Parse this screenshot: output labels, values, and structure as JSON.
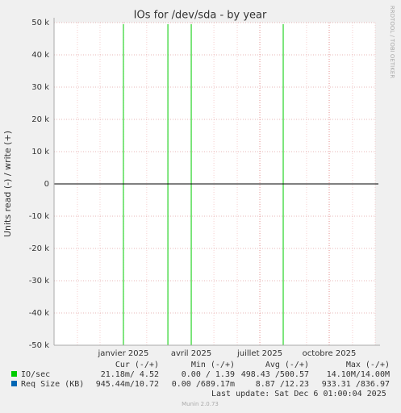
{
  "chart_data": {
    "type": "line",
    "title": "IOs for /dev/sda - by year",
    "y_label": "Units read (-) / write (+)",
    "side_label": "RRDTOOL / TOBI OETIKER",
    "xlim": [
      "2024-10",
      "2025-12"
    ],
    "xticks": [
      {
        "value": "2025-01",
        "label": "janvier 2025"
      },
      {
        "value": "2025-04",
        "label": "avril 2025"
      },
      {
        "value": "2025-07",
        "label": "juillet 2025"
      },
      {
        "value": "2025-10",
        "label": "octobre 2025"
      }
    ],
    "ylim": [
      -50000,
      50000
    ],
    "yticks": [
      {
        "value": -50000,
        "label": "-50 k"
      },
      {
        "value": -40000,
        "label": "-40 k"
      },
      {
        "value": -30000,
        "label": "-30 k"
      },
      {
        "value": -20000,
        "label": "-20 k"
      },
      {
        "value": -10000,
        "label": "-10 k"
      },
      0,
      {
        "value": 10000,
        "label": "10 k"
      },
      {
        "value": 20000,
        "label": "20 k"
      },
      {
        "value": 30000,
        "label": "30 k"
      },
      {
        "value": 40000,
        "label": "40 k"
      },
      {
        "value": 50000,
        "label": "50 k"
      }
    ],
    "grid": true,
    "series": [
      {
        "name": "IO/sec",
        "color": "#00cc00",
        "x": [
          "2024-10",
          "2025-01",
          "2025-01",
          "2025-01",
          "2025-01",
          "2025-03",
          "2025-03",
          "2025-03",
          "2025-03",
          "2025-04",
          "2025-04",
          "2025-04",
          "2025-04",
          "2025-08",
          "2025-08",
          "2025-08",
          "2025-08",
          "2025-12"
        ],
        "values": [
          0,
          0,
          49500,
          -50000,
          0,
          0,
          49500,
          -50000,
          0,
          0,
          49500,
          -50000,
          0,
          0,
          49500,
          -50000,
          0,
          0
        ]
      },
      {
        "name": "Req Size (KB)",
        "color": "#0066b3",
        "x": [
          "2024-10",
          "2025-12"
        ],
        "values": [
          0,
          0
        ]
      }
    ],
    "stats_columns": [
      "Cur (-/+)",
      "Min (-/+)",
      "Avg (-/+)",
      "Max (-/+)"
    ],
    "stats": [
      [
        "21.18m/ 4.52",
        "0.00 / 1.39",
        "498.43 /500.57",
        "14.10M/14.00M"
      ],
      [
        "945.44m/10.72",
        "0.00 /689.17m",
        "8.87 /12.23",
        "933.31 /836.97"
      ]
    ],
    "last_update": "Last update: Sat Dec  6 01:00:04 2025",
    "footer": "Munin 2.0.73"
  }
}
